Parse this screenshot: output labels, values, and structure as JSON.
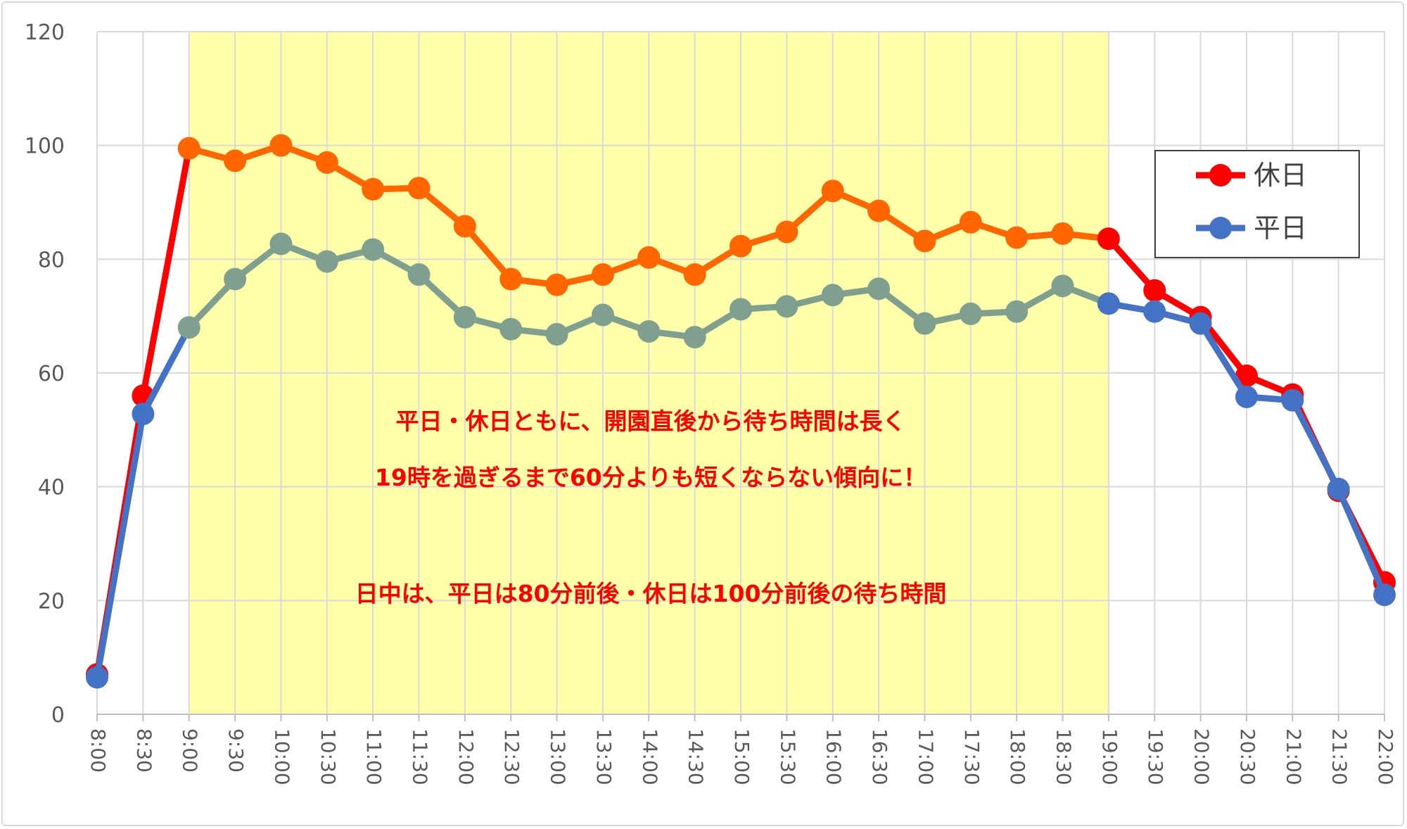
{
  "chart_data": {
    "type": "line",
    "title": "",
    "xlabel": "",
    "ylabel": "",
    "ylim": [
      0,
      120
    ],
    "yticks": [
      0,
      20,
      40,
      60,
      80,
      100,
      120
    ],
    "grid": true,
    "legend_position": "top-right",
    "categories": [
      "8:00",
      "8:30",
      "9:00",
      "9:30",
      "10:00",
      "10:30",
      "11:00",
      "11:30",
      "12:00",
      "12:30",
      "13:00",
      "13:30",
      "14:00",
      "14:30",
      "15:00",
      "15:30",
      "16:00",
      "16:30",
      "17:00",
      "17:30",
      "18:00",
      "18:30",
      "19:00",
      "19:30",
      "20:00",
      "20:30",
      "21:00",
      "21:30",
      "22:00"
    ],
    "series": [
      {
        "name": "休日",
        "color": "#ff0000",
        "highlight_color": "#ff6600",
        "values": [
          7,
          56,
          99.5,
          97.3,
          100,
          97,
          92.3,
          92.5,
          85.8,
          76.5,
          75.5,
          77.3,
          80.3,
          77.3,
          82.3,
          84.8,
          92,
          88.5,
          83.2,
          86.5,
          83.8,
          84.5,
          83.6,
          74.5,
          69.8,
          59.5,
          56.2,
          39.3,
          23.2
        ]
      },
      {
        "name": "平日",
        "color": "#4472c4",
        "highlight_color": "#7f9f8f",
        "values": [
          6.5,
          52.8,
          68,
          76.5,
          82.7,
          79.6,
          81.7,
          77.3,
          69.8,
          67.7,
          66.8,
          70.2,
          67.3,
          66.3,
          71.2,
          71.7,
          73.7,
          74.8,
          68.7,
          70.4,
          70.8,
          75.3,
          72.2,
          70.8,
          68.7,
          55.8,
          55.2,
          39.6,
          21
        ]
      }
    ],
    "highlight_band": {
      "from": "9:00",
      "to": "19:00",
      "color": "#ffffaa"
    },
    "annotations": [
      "平日・休日ともに、開園直後から待ち時間は長く",
      "19時を過ぎるまで60分よりも短くならない傾向に！",
      "日中は、平日は80分前後・休日は100分前後の待ち時間"
    ]
  }
}
